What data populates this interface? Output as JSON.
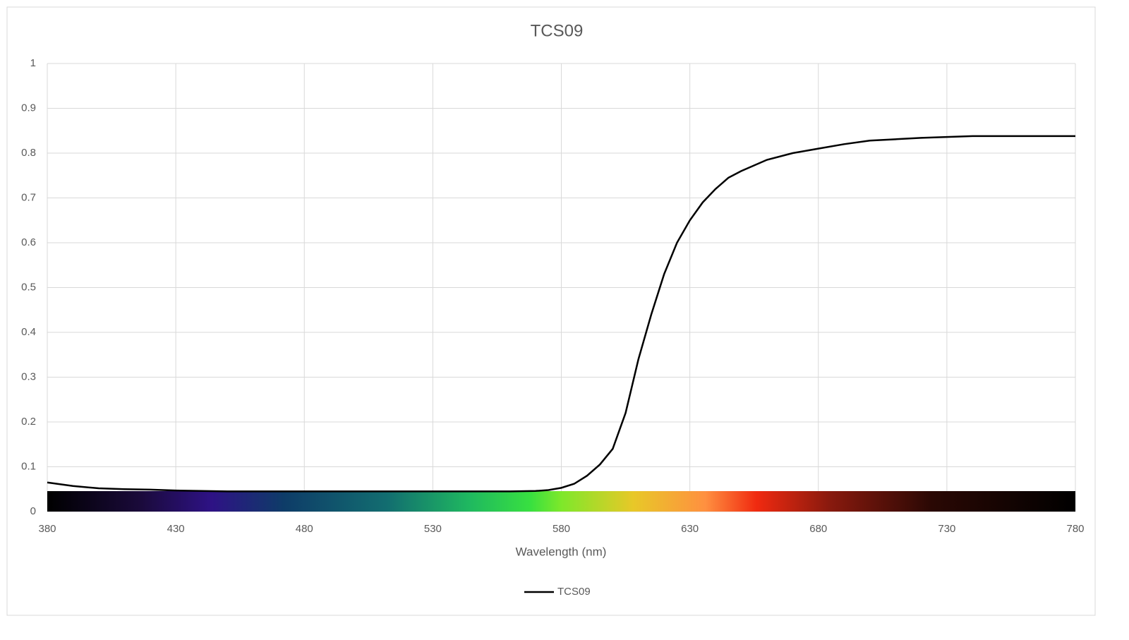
{
  "chart_data": {
    "type": "line",
    "title": "TCS09",
    "x_label": "Wavelength (nm)",
    "x": [
      380,
      390,
      400,
      410,
      420,
      430,
      440,
      450,
      460,
      470,
      480,
      490,
      500,
      510,
      520,
      530,
      540,
      550,
      560,
      570,
      575,
      580,
      585,
      590,
      595,
      600,
      605,
      610,
      615,
      620,
      625,
      630,
      635,
      640,
      645,
      650,
      660,
      670,
      680,
      690,
      700,
      710,
      720,
      730,
      740,
      750,
      760,
      770,
      780
    ],
    "series": [
      {
        "name": "TCS09",
        "color": "#000000",
        "values": [
          0.065,
          0.057,
          0.052,
          0.05,
          0.049,
          0.047,
          0.046,
          0.045,
          0.045,
          0.045,
          0.045,
          0.045,
          0.045,
          0.045,
          0.045,
          0.045,
          0.045,
          0.045,
          0.045,
          0.046,
          0.048,
          0.053,
          0.062,
          0.08,
          0.105,
          0.14,
          0.22,
          0.34,
          0.44,
          0.53,
          0.6,
          0.65,
          0.69,
          0.72,
          0.745,
          0.76,
          0.785,
          0.8,
          0.81,
          0.82,
          0.828,
          0.831,
          0.834,
          0.836,
          0.838,
          0.838,
          0.838,
          0.838,
          0.838
        ]
      }
    ],
    "xlim": [
      380,
      780
    ],
    "xticks": [
      380,
      430,
      480,
      530,
      580,
      630,
      680,
      730,
      780
    ],
    "ylim": [
      0,
      1
    ],
    "yticks": [
      0,
      0.1,
      0.2,
      0.3,
      0.4,
      0.5,
      0.6,
      0.7,
      0.8,
      0.9,
      1
    ],
    "grid": true,
    "legend": "bottom"
  }
}
